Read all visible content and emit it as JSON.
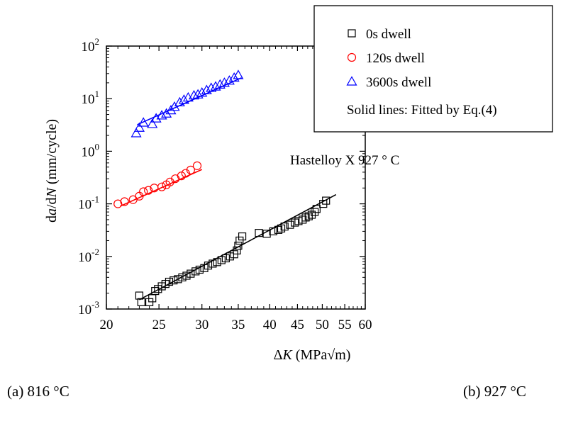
{
  "chart_data": {
    "type": "scatter",
    "x_scale": "log",
    "y_scale": "log",
    "xlim": [
      20,
      60
    ],
    "ylim": [
      0.001,
      100
    ],
    "x_ticks": [
      20,
      25,
      30,
      35,
      40,
      45,
      50,
      55,
      60
    ],
    "y_ticks": [
      {
        "value": 0.001,
        "base": "10",
        "exp": "-3"
      },
      {
        "value": 0.01,
        "base": "10",
        "exp": "-2"
      },
      {
        "value": 0.1,
        "base": "10",
        "exp": "-1"
      },
      {
        "value": 1,
        "base": "10",
        "exp": "0"
      },
      {
        "value": 10,
        "base": "10",
        "exp": "1"
      },
      {
        "value": 100,
        "base": "10",
        "exp": "2"
      }
    ],
    "xlabel": {
      "pre": "Δ",
      "italic": "K",
      "post": " (MPa√m)"
    },
    "ylabel": {
      "p1": "d",
      "i1": "a",
      "p2": "/d",
      "i2": "N",
      "p3": " (mm/cycle)"
    },
    "annotation": "Hastelloy X 927 ° C",
    "legend": {
      "placement": "top-right",
      "note": "Solid lines: Fitted by Eq.(4)"
    },
    "series": [
      {
        "name": "0s dwell",
        "marker": "square",
        "color": "#000000",
        "points": [
          [
            23.0,
            0.0018
          ],
          [
            23.2,
            0.00135
          ],
          [
            24.0,
            0.00135
          ],
          [
            24.3,
            0.0016
          ],
          [
            24.6,
            0.0022
          ],
          [
            24.9,
            0.0024
          ],
          [
            25.3,
            0.0027
          ],
          [
            25.7,
            0.003
          ],
          [
            26.1,
            0.0033
          ],
          [
            26.6,
            0.0035
          ],
          [
            27.1,
            0.0037
          ],
          [
            27.6,
            0.004
          ],
          [
            28.1,
            0.0043
          ],
          [
            28.6,
            0.0047
          ],
          [
            29.2,
            0.0052
          ],
          [
            29.7,
            0.0056
          ],
          [
            30.3,
            0.006
          ],
          [
            30.8,
            0.0067
          ],
          [
            31.4,
            0.0073
          ],
          [
            32.0,
            0.0078
          ],
          [
            32.6,
            0.0085
          ],
          [
            33.2,
            0.0092
          ],
          [
            33.8,
            0.01
          ],
          [
            34.4,
            0.011
          ],
          [
            34.8,
            0.013
          ],
          [
            35.0,
            0.016
          ],
          [
            35.2,
            0.02
          ],
          [
            35.6,
            0.024
          ],
          [
            38.2,
            0.028
          ],
          [
            39.5,
            0.027
          ],
          [
            40.6,
            0.03
          ],
          [
            41.5,
            0.032
          ],
          [
            42.0,
            0.034
          ],
          [
            42.6,
            0.037
          ],
          [
            43.6,
            0.04
          ],
          [
            44.5,
            0.044
          ],
          [
            45.2,
            0.047
          ],
          [
            46.0,
            0.05
          ],
          [
            46.6,
            0.055
          ],
          [
            47.2,
            0.058
          ],
          [
            47.8,
            0.062
          ],
          [
            48.4,
            0.07
          ],
          [
            48.8,
            0.08
          ],
          [
            50.2,
            0.1
          ],
          [
            50.8,
            0.115
          ]
        ],
        "fit": [
          [
            23.0,
            0.0015
          ],
          [
            53.0,
            0.15
          ]
        ]
      },
      {
        "name": "120s dwell",
        "marker": "circle",
        "color": "#ff0000",
        "points": [
          [
            21.0,
            0.1
          ],
          [
            21.6,
            0.11
          ],
          [
            22.4,
            0.12
          ],
          [
            23.0,
            0.14
          ],
          [
            23.4,
            0.17
          ],
          [
            23.9,
            0.18
          ],
          [
            24.5,
            0.2
          ],
          [
            25.3,
            0.21
          ],
          [
            25.8,
            0.23
          ],
          [
            26.2,
            0.26
          ],
          [
            26.8,
            0.3
          ],
          [
            27.5,
            0.34
          ],
          [
            28.0,
            0.38
          ],
          [
            28.6,
            0.44
          ],
          [
            29.4,
            0.53
          ]
        ],
        "fit": [
          [
            21.2,
            0.09
          ],
          [
            30.0,
            0.45
          ]
        ]
      },
      {
        "name": "3600s dwell",
        "marker": "triangle",
        "color": "#0000ff",
        "points": [
          [
            22.7,
            2.2
          ],
          [
            23.0,
            2.8
          ],
          [
            23.4,
            3.5
          ],
          [
            24.3,
            3.3
          ],
          [
            24.7,
            4.2
          ],
          [
            25.3,
            4.8
          ],
          [
            25.8,
            5.2
          ],
          [
            26.3,
            6.0
          ],
          [
            26.7,
            7.0
          ],
          [
            27.3,
            8.5
          ],
          [
            27.8,
            9.5
          ],
          [
            28.3,
            10.5
          ],
          [
            29.0,
            11.5
          ],
          [
            29.5,
            12.0
          ],
          [
            30.0,
            13.0
          ],
          [
            30.6,
            14.5
          ],
          [
            31.2,
            16.0
          ],
          [
            31.8,
            17.0
          ],
          [
            32.4,
            18.5
          ],
          [
            33.0,
            20.0
          ],
          [
            33.7,
            22.0
          ],
          [
            34.4,
            25.0
          ],
          [
            35.0,
            28.0
          ]
        ],
        "fit": [
          [
            22.8,
            3.2
          ],
          [
            35.5,
            25.0
          ]
        ]
      }
    ]
  },
  "captions": {
    "a": "(a) 816 °C",
    "b": "(b) 927 °C"
  }
}
